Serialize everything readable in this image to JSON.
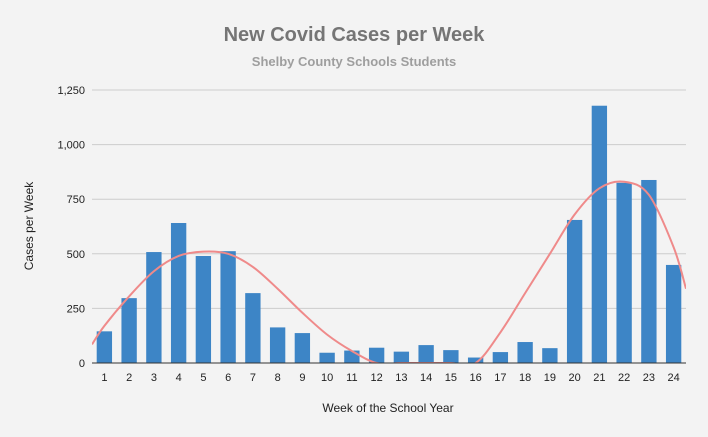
{
  "colors": {
    "background": "#f3f3f3",
    "bar": "#3d85c6",
    "trendline": "#ef8a8a",
    "grid": "#cccccc",
    "axis": "#333333"
  },
  "chart_data": {
    "type": "bar",
    "title": "New Covid Cases per Week",
    "subtitle": "Shelby County Schools Students",
    "xlabel": "Week of the School Year",
    "ylabel": "Cases per Week",
    "ylim": [
      0,
      1250
    ],
    "yticks": [
      0,
      250,
      500,
      750,
      1000,
      1250
    ],
    "ytick_labels": [
      "0",
      "250",
      "500",
      "750",
      "1,000",
      "1,250"
    ],
    "grid": true,
    "legend": "none",
    "categories": [
      "1",
      "2",
      "3",
      "4",
      "5",
      "6",
      "7",
      "8",
      "9",
      "10",
      "11",
      "12",
      "13",
      "14",
      "15",
      "16",
      "17",
      "18",
      "19",
      "20",
      "21",
      "22",
      "23",
      "24"
    ],
    "series": [
      {
        "name": "Cases per Week",
        "values": [
          145,
          297,
          508,
          641,
          490,
          512,
          320,
          163,
          137,
          47,
          57,
          70,
          52,
          82,
          59,
          25,
          50,
          96,
          68,
          655,
          1178,
          825,
          838,
          449
        ]
      }
    ],
    "trendline": {
      "type": "polynomial",
      "x": [
        0.5,
        1,
        2,
        3,
        4,
        5,
        6,
        7,
        8,
        9,
        10,
        11,
        12,
        13,
        14,
        15,
        16,
        17,
        18,
        19,
        20,
        21,
        22,
        23,
        24,
        24.5
      ],
      "y": [
        85,
        170,
        305,
        420,
        490,
        510,
        500,
        440,
        340,
        230,
        130,
        55,
        0,
        0,
        0,
        0,
        0,
        140,
        320,
        500,
        680,
        800,
        830,
        770,
        530,
        340
      ]
    }
  }
}
